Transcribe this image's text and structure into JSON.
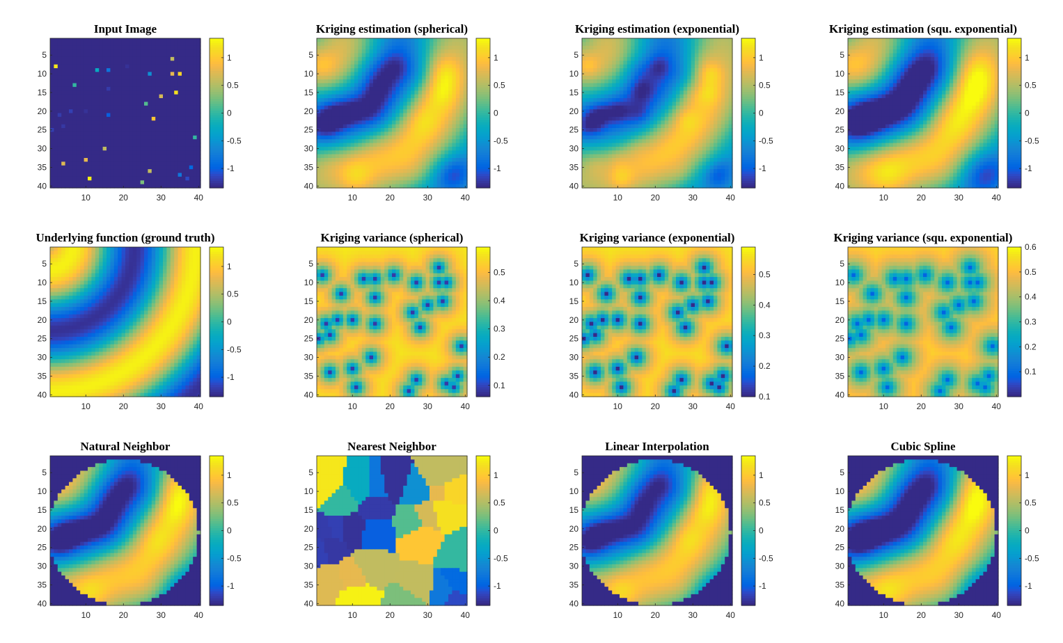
{
  "chart_data": [
    {
      "type": "heatmap",
      "title": "Input Image",
      "field": "input",
      "colormap": "parula",
      "colorbar_ticks": [
        "1",
        "0.5",
        "0",
        "-0.5",
        "-1"
      ],
      "clim": [
        -1.35,
        1.35
      ]
    },
    {
      "type": "heatmap",
      "title": "Kriging estimation (spherical)",
      "field": "krig_sph",
      "colormap": "parula",
      "colorbar_ticks": [
        "1",
        "0.5",
        "0",
        "-0.5",
        "-1"
      ],
      "clim": [
        -1.35,
        1.35
      ]
    },
    {
      "type": "heatmap",
      "title": "Kriging estimation (exponential)",
      "field": "krig_exp",
      "colormap": "parula",
      "colorbar_ticks": [
        "1",
        "0.5",
        "0",
        "-0.5",
        "-1"
      ],
      "clim": [
        -1.35,
        1.35
      ]
    },
    {
      "type": "heatmap",
      "title": "Kriging estimation (squ. exponential)",
      "field": "krig_sqe",
      "colormap": "parula",
      "colorbar_ticks": [
        "1",
        "0.5",
        "0",
        "-0.5",
        "-1"
      ],
      "clim": [
        -1.35,
        1.35
      ]
    },
    {
      "type": "heatmap",
      "title": "Underlying function (ground truth)",
      "field": "truth",
      "colormap": "parula",
      "colorbar_ticks": [
        "1",
        "0.5",
        "0",
        "-0.5",
        "-1"
      ],
      "clim": [
        -1.35,
        1.35
      ]
    },
    {
      "type": "heatmap",
      "title": "Kriging variance (spherical)",
      "field": "var_sph",
      "colormap": "parula",
      "colorbar_ticks": [
        "0.5",
        "0.4",
        "0.3",
        "0.2",
        "0.1"
      ],
      "clim": [
        0.06,
        0.59
      ]
    },
    {
      "type": "heatmap",
      "title": "Kriging variance (exponential)",
      "field": "var_exp",
      "colormap": "parula",
      "colorbar_ticks": [
        "0.5",
        "0.4",
        "0.3",
        "0.2",
        "0.1"
      ],
      "clim": [
        0.1,
        0.59
      ]
    },
    {
      "type": "heatmap",
      "title": "Kriging variance (squ. exponential)",
      "field": "var_sqe",
      "colormap": "parula",
      "colorbar_ticks": [
        "0.6",
        "0.5",
        "0.4",
        "0.3",
        "0.2",
        "0.1"
      ],
      "clim": [
        0.0,
        0.6
      ]
    },
    {
      "type": "heatmap",
      "title": "Natural Neighbor",
      "field": "natural",
      "colormap": "parula",
      "colorbar_ticks": [
        "1",
        "0.5",
        "0",
        "-0.5",
        "-1"
      ],
      "clim": [
        -1.35,
        1.35
      ]
    },
    {
      "type": "heatmap",
      "title": "Nearest Neighbor",
      "field": "nearest",
      "colormap": "parula",
      "colorbar_ticks": [
        "1",
        "0.5",
        "0",
        "-0.5",
        "-1"
      ],
      "clim": [
        -1.35,
        1.35
      ]
    },
    {
      "type": "heatmap",
      "title": "Linear Interpolation",
      "field": "linear",
      "colormap": "parula",
      "colorbar_ticks": [
        "1",
        "0.5",
        "0",
        "-0.5",
        "-1"
      ],
      "clim": [
        -1.35,
        1.35
      ]
    },
    {
      "type": "heatmap",
      "title": "Cubic Spline",
      "field": "cubic",
      "colormap": "parula",
      "colorbar_ticks": [
        "1",
        "0.5",
        "0",
        "-0.5",
        "-1"
      ],
      "clim": [
        -1.35,
        1.35
      ]
    }
  ],
  "axes": {
    "x_ticks": [
      "10",
      "20",
      "30",
      "40"
    ],
    "y_ticks": [
      "5",
      "10",
      "15",
      "20",
      "25",
      "30",
      "35",
      "40"
    ],
    "xlim": [
      0.5,
      40.5
    ],
    "ylim": [
      0.5,
      40.5
    ],
    "grid_size": 40
  }
}
